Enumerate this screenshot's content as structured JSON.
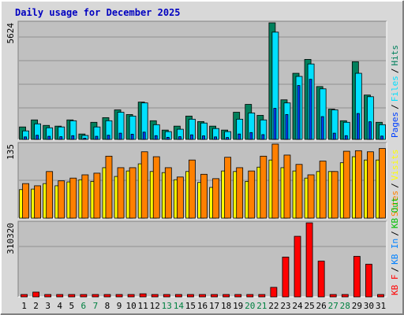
{
  "chart_data": {
    "type": "bar",
    "title": "Daily usage for December 2025",
    "legend_separator": "/",
    "categories": [
      "1",
      "2",
      "3",
      "4",
      "5",
      "6",
      "7",
      "8",
      "9",
      "10",
      "11",
      "12",
      "13",
      "14",
      "15",
      "16",
      "17",
      "18",
      "19",
      "20",
      "21",
      "22",
      "23",
      "24",
      "25",
      "26",
      "27",
      "28",
      "29",
      "30",
      "31"
    ],
    "category_colors": [
      "#000000",
      "#000000",
      "#000000",
      "#000000",
      "#000000",
      "#008040",
      "#008040",
      "#000000",
      "#000000",
      "#000000",
      "#000000",
      "#000000",
      "#008040",
      "#008040",
      "#000000",
      "#000000",
      "#000000",
      "#000000",
      "#000000",
      "#008040",
      "#008040",
      "#000000",
      "#000000",
      "#000000",
      "#000000",
      "#000000",
      "#008040",
      "#008040",
      "#000000",
      "#000000",
      "#000000"
    ],
    "panels": [
      {
        "ylim": [
          0,
          5624
        ],
        "yticks": [
          5624
        ],
        "series": [
          {
            "name": "Hits",
            "color": "#00805c",
            "values": [
              600,
              940,
              675,
              640,
              940,
              260,
              825,
              1050,
              1425,
              1200,
              1800,
              900,
              450,
              640,
              1125,
              860,
              640,
              450,
              1310,
              1690,
              1160,
              5624,
              1910,
              3190,
              3860,
              2550,
              1460,
              900,
              3750,
              2140,
              825
            ]
          },
          {
            "name": "Files",
            "color": "#00e0ff",
            "values": [
              410,
              750,
              560,
              600,
              900,
              190,
              600,
              900,
              1310,
              1125,
              1760,
              710,
              375,
              490,
              975,
              790,
              525,
              375,
              975,
              1275,
              940,
              5175,
              1760,
              3040,
              3640,
              2440,
              1425,
              825,
              3190,
              2060,
              710
            ]
          },
          {
            "name": "Pages",
            "color": "#0040ff",
            "values": [
              120,
              200,
              150,
              130,
              180,
              60,
              150,
              200,
              300,
              250,
              350,
              180,
              100,
              130,
              220,
              170,
              120,
              90,
              260,
              330,
              230,
              1500,
              1200,
              2600,
              2900,
              1100,
              300,
              180,
              1250,
              850,
              160
            ]
          }
        ]
      },
      {
        "ylim": [
          0,
          135
        ],
        "yticks": [
          135
        ],
        "series": [
          {
            "name": "Visits",
            "color": "#ffff00",
            "values": [
              52,
              53,
              63,
              59,
              66,
              70,
              67,
              92,
              76,
              86,
              99,
              85,
              83,
              70,
              85,
              65,
              56,
              86,
              85,
              67,
              93,
              106,
              92,
              86,
              73,
              85,
              85,
              101,
              112,
              106,
              106
            ]
          },
          {
            "name": "Sites",
            "color": "#ff8000",
            "values": [
              63,
              59,
              85,
              68,
              73,
              79,
              82,
              113,
              92,
              92,
              121,
              112,
              92,
              75,
              106,
              80,
              72,
              111,
              92,
              86,
              113,
              135,
              115,
              98,
              79,
              104,
              85,
              122,
              123,
              121,
              127
            ]
          }
        ]
      },
      {
        "ylim": [
          0,
          310320
        ],
        "yticks": [
          310320
        ],
        "series": [
          {
            "name": "KB Out",
            "color": "#00c000"
          },
          {
            "name": "KB In",
            "color": "#0080ff"
          },
          {
            "name": "KB F",
            "color": "#ff0000",
            "values": [
              10000,
              20000,
              10000,
              10000,
              10000,
              10000,
              10000,
              10000,
              10000,
              10000,
              13000,
              10000,
              10000,
              10000,
              10000,
              10000,
              10000,
              10000,
              10000,
              10000,
              10000,
              40000,
              167000,
              254000,
              310320,
              150000,
              10000,
              10000,
              170000,
              137000,
              10000
            ]
          }
        ]
      }
    ]
  }
}
